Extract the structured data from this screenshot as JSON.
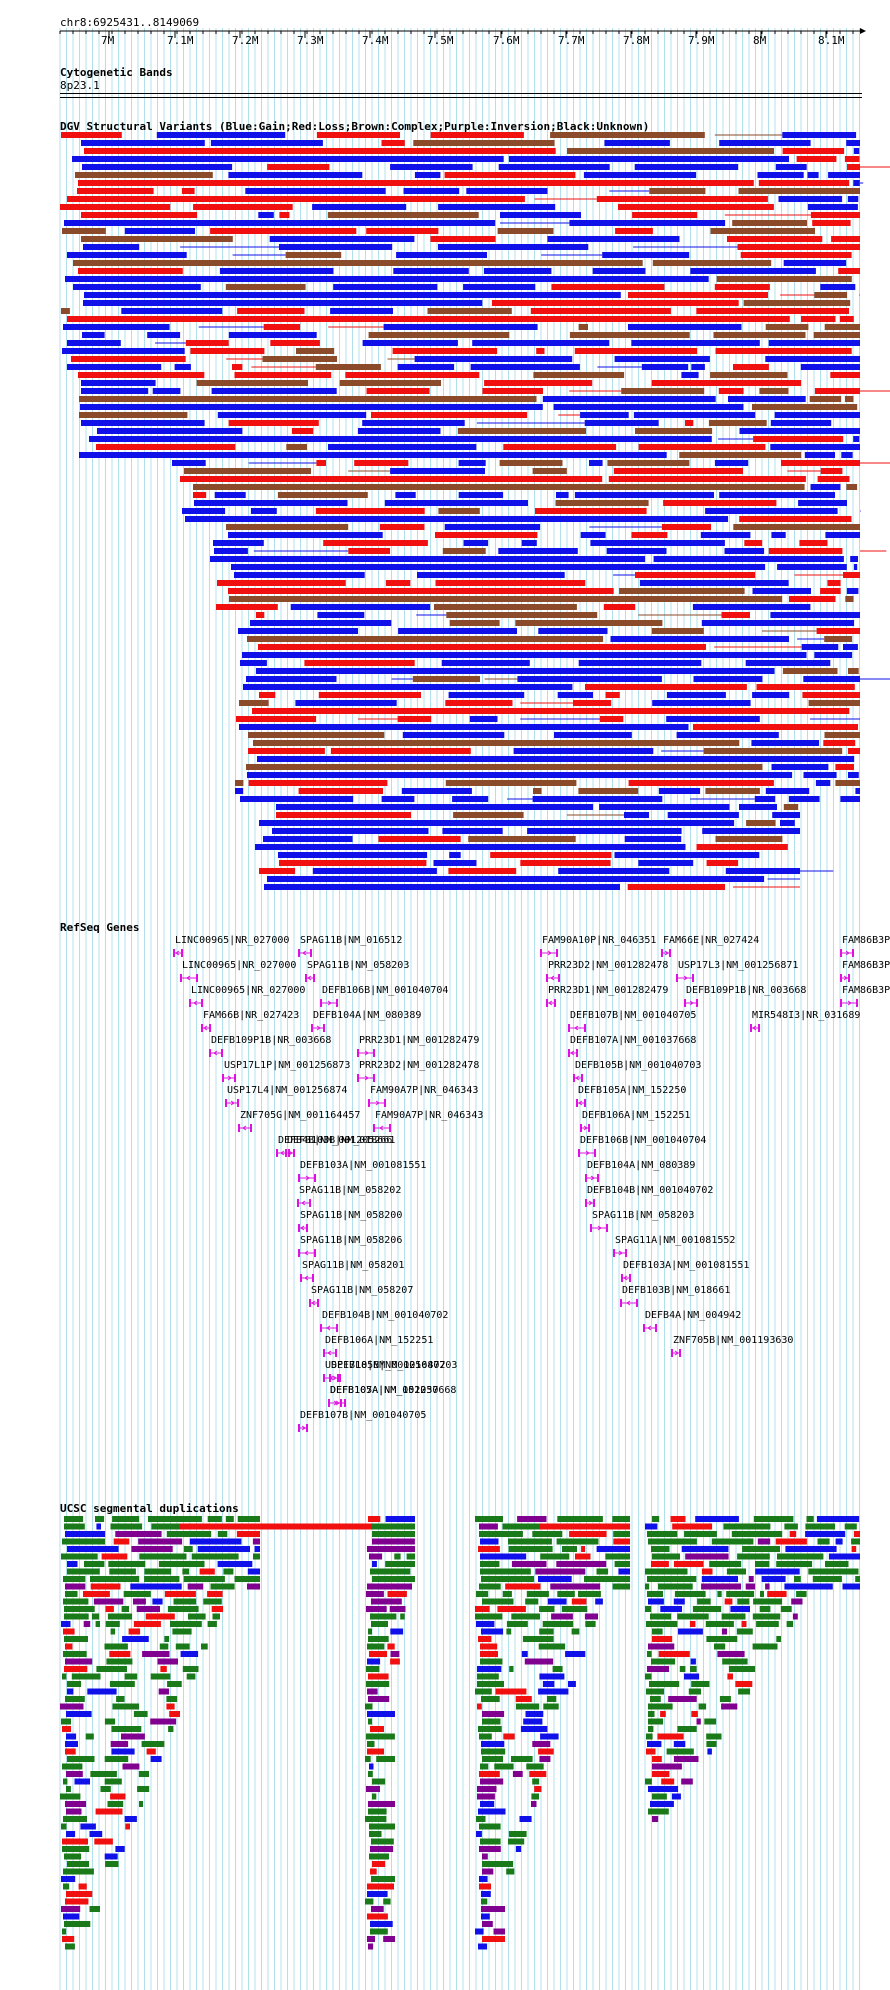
{
  "ruler": {
    "coords": "chr8:6925431..8149069",
    "ticks": [
      "7M",
      "7.1M",
      "7.2M",
      "7.3M",
      "7.4M",
      "7.5M",
      "7.6M",
      "7.7M",
      "7.8M",
      "7.9M",
      "8M",
      "8.1M"
    ]
  },
  "tracks": {
    "cyto": {
      "title": "Cytogenetic Bands",
      "band": "8p23.1"
    },
    "dgv": {
      "title": "DGV Structural Variants (Blue:Gain;Red:Loss;Brown:Complex;Purple:Inversion;Black:Unknown)"
    },
    "refseq": {
      "title": "RefSeq Genes"
    },
    "segdup": {
      "title": "UCSC segmental duplications"
    }
  },
  "colors": {
    "gain": "#1010e8",
    "loss": "#f01010",
    "complex": "#8b4a2a",
    "inversion": "#800090",
    "unknown": "#000000",
    "gene": "#e010e0",
    "segdup_green": "#1a7a1a",
    "grid": "#b0e0ec"
  },
  "genes": [
    {
      "label": "LINC00965|NR_027000",
      "strand": "-"
    },
    {
      "label": "SPAG11B|NM_016512",
      "strand": "-"
    },
    {
      "label": "FAM90A10P|NR_046351",
      "strand": "+"
    },
    {
      "label": "FAM66E|NR_027424",
      "strand": "+"
    },
    {
      "label": "FAM86B3P",
      "strand": "+"
    },
    {
      "label": "LINC00965|NR_027000",
      "strand": "-"
    },
    {
      "label": "SPAG11B|NM_058203",
      "strand": "-"
    },
    {
      "label": "PRR23D2|NM_001282478",
      "strand": "-"
    },
    {
      "label": "USP17L3|NM_001256871",
      "strand": "+"
    },
    {
      "label": "FAM86B3P",
      "strand": "+"
    },
    {
      "label": "LINC00965|NR_027000",
      "strand": "-"
    },
    {
      "label": "DEFB106B|NM_001040704",
      "strand": "+"
    },
    {
      "label": "PRR23D1|NM_001282479",
      "strand": "-"
    },
    {
      "label": "DEFB109P1B|NR_003668",
      "strand": "+"
    },
    {
      "label": "FAM86B3P",
      "strand": "+"
    },
    {
      "label": "FAM66B|NR_027423",
      "strand": "-"
    },
    {
      "label": "DEFB104A|NM_080389",
      "strand": "+"
    },
    {
      "label": "DEFB107B|NM_001040705",
      "strand": "-"
    },
    {
      "label": "MIR548I3|NR_031689",
      "strand": "-"
    },
    {
      "label": "DEFB109P1B|NR_003668",
      "strand": "-"
    },
    {
      "label": "PRR23D1|NM_001282479",
      "strand": "+"
    },
    {
      "label": "DEFB107A|NM_001037668",
      "strand": "-"
    },
    {
      "label": "USP17L1P|NM_001256873",
      "strand": "+"
    },
    {
      "label": "PRR23D2|NM_001282478",
      "strand": "+"
    },
    {
      "label": "DEFB105B|NM_001040703",
      "strand": "-"
    },
    {
      "label": "USP17L4|NM_001256874",
      "strand": "+"
    },
    {
      "label": "FAM90A7P|NR_046343",
      "strand": "+"
    },
    {
      "label": "DEFB105A|NM_152250",
      "strand": "-"
    },
    {
      "label": "ZNF705G|NM_001164457",
      "strand": "-"
    },
    {
      "label": "FAM90A7P|NR_046343",
      "strand": "-"
    },
    {
      "label": "DEFB106A|NM_152251",
      "strand": "+"
    },
    {
      "label": "DEFB4B|NM_001205266",
      "strand": "-"
    },
    {
      "label": "DEFB106B|NM_001040704",
      "strand": "+"
    },
    {
      "label": "DEFB103B|NM_018661",
      "strand": "+"
    },
    {
      "label": "DEFB104A|NM_080389",
      "strand": "+"
    },
    {
      "label": "DEFB103A|NM_001081551",
      "strand": "+"
    },
    {
      "label": "DEFB104B|NM_001040702",
      "strand": "+"
    },
    {
      "label": "SPAG11B|NM_058202",
      "strand": "-"
    },
    {
      "label": "SPAG11B|NM_058203",
      "strand": "+"
    },
    {
      "label": "SPAG11B|NM_058200",
      "strand": "-"
    },
    {
      "label": "SPAG11A|NM_001081552",
      "strand": "+"
    },
    {
      "label": "SPAG11B|NM_058206",
      "strand": "-"
    },
    {
      "label": "DEFB103A|NM_001081551",
      "strand": "-"
    },
    {
      "label": "SPAG11B|NM_058201",
      "strand": "-"
    },
    {
      "label": "DEFB103B|NM_018661",
      "strand": "-"
    },
    {
      "label": "SPAG11B|NM_058207",
      "strand": "-"
    },
    {
      "label": "DEFB4A|NM_004942",
      "strand": "-"
    },
    {
      "label": "DEFB104B|NM_001040702",
      "strand": "-"
    },
    {
      "label": "ZNF705B|NM_001193630",
      "strand": "+"
    },
    {
      "label": "DEFB106A|NM_152251",
      "strand": "-"
    },
    {
      "label": "USP17L8|NM_001256872",
      "strand": "-"
    },
    {
      "label": "DEFB105B|NM_001040703",
      "strand": "+"
    },
    {
      "label": "DEFB105A|NM_152250",
      "strand": "+"
    },
    {
      "label": "DEFB107A|NM_001037668",
      "strand": "+"
    },
    {
      "label": "DEFB107B|NM_001040705",
      "strand": "+"
    }
  ]
}
